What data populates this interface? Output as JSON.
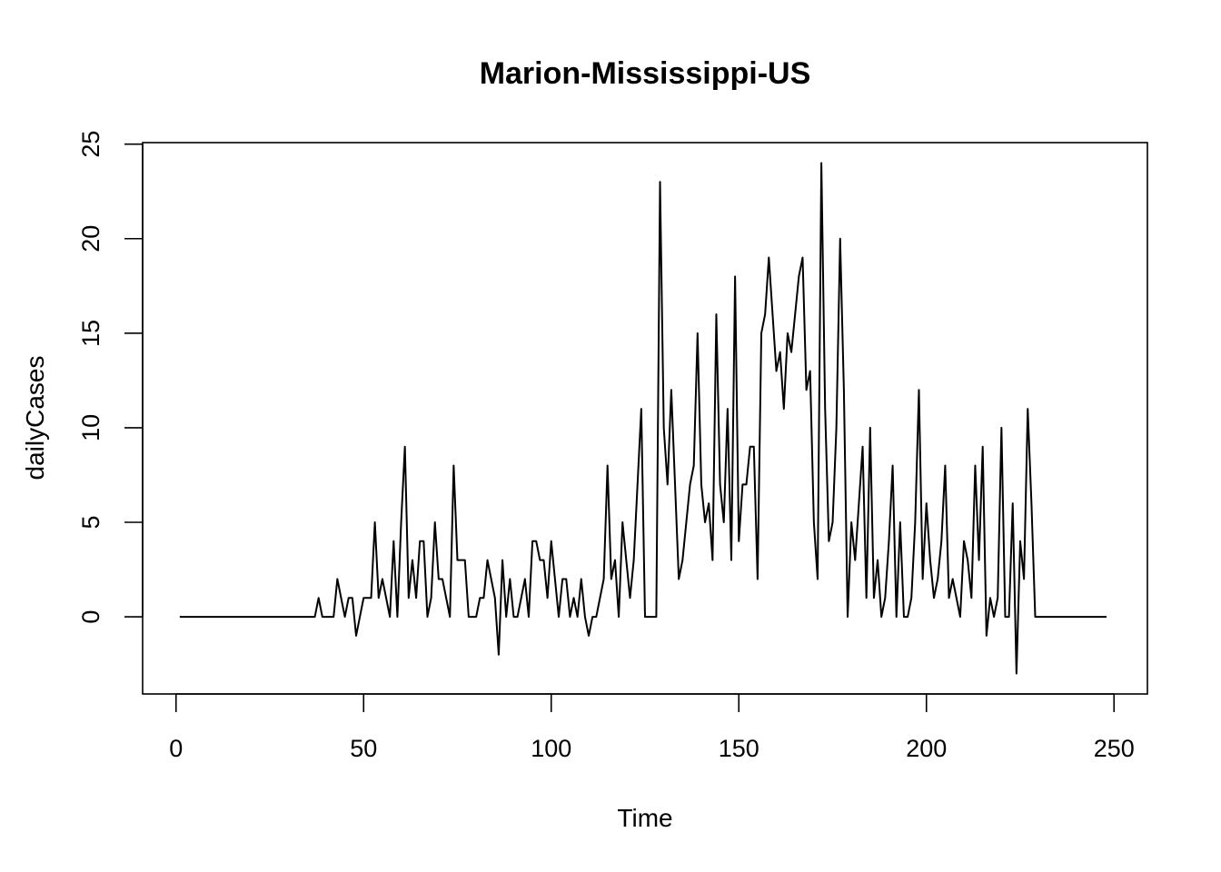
{
  "chart_data": {
    "type": "line",
    "title": "Marion-Mississippi-US",
    "xlabel": "Time",
    "ylabel": "dailyCases",
    "xlim": [
      -8.9,
      258.9
    ],
    "ylim": [
      -4.08,
      25.08
    ],
    "x_ticks": [
      0,
      50,
      100,
      150,
      200,
      250
    ],
    "y_ticks": [
      0,
      5,
      10,
      15,
      20,
      25
    ],
    "x_tick_labels": [
      "0",
      "50",
      "100",
      "150",
      "200",
      "250"
    ],
    "y_tick_labels": [
      "0",
      "5",
      "10",
      "15",
      "20",
      "25"
    ],
    "grid": false,
    "line_color": "#000000",
    "x_start": 1,
    "series": [
      {
        "values": [
          0,
          0,
          0,
          0,
          0,
          0,
          0,
          0,
          0,
          0,
          0,
          0,
          0,
          0,
          0,
          0,
          0,
          0,
          0,
          0,
          0,
          0,
          0,
          0,
          0,
          0,
          0,
          0,
          0,
          0,
          0,
          0,
          0,
          0,
          0,
          0,
          0,
          1,
          0,
          0,
          0,
          0,
          2,
          1,
          0,
          1,
          1,
          -1,
          0,
          1,
          1,
          1,
          5,
          1,
          2,
          1,
          0,
          4,
          0,
          5,
          9,
          1,
          3,
          1,
          4,
          4,
          0,
          1,
          5,
          2,
          2,
          1,
          0,
          8,
          3,
          3,
          3,
          0,
          0,
          0,
          1,
          1,
          3,
          2,
          1,
          -2,
          3,
          0,
          2,
          0,
          0,
          1,
          2,
          0,
          4,
          4,
          3,
          3,
          1,
          4,
          2,
          0,
          2,
          2,
          0,
          1,
          0,
          2,
          0,
          -1,
          0,
          0,
          1,
          2,
          8,
          2,
          3,
          0,
          5,
          3,
          1,
          3,
          7,
          11,
          0,
          0,
          0,
          0,
          23,
          10,
          7,
          12,
          7,
          2,
          3,
          5,
          7,
          8,
          15,
          7,
          5,
          6,
          3,
          16,
          7,
          5,
          11,
          3,
          18,
          4,
          7,
          7,
          9,
          9,
          2,
          15,
          16,
          19,
          16,
          13,
          14,
          11,
          15,
          14,
          16,
          18,
          19,
          12,
          13,
          5,
          2,
          24,
          11,
          4,
          5,
          10,
          20,
          12,
          0,
          5,
          3,
          6,
          9,
          1,
          10,
          1,
          3,
          0,
          1,
          4,
          8,
          0,
          5,
          0,
          0,
          1,
          5,
          12,
          2,
          6,
          3,
          1,
          2,
          4,
          8,
          1,
          2,
          1,
          0,
          4,
          3,
          1,
          8,
          3,
          9,
          -1,
          1,
          0,
          1,
          10,
          0,
          0,
          6,
          -3,
          4,
          2,
          11,
          6,
          0,
          0,
          0,
          0,
          0,
          0,
          0,
          0,
          0,
          0,
          0,
          0,
          0,
          0,
          0,
          0,
          0,
          0,
          0,
          0
        ]
      }
    ]
  }
}
